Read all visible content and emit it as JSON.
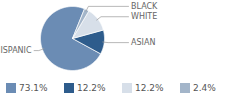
{
  "chart_data": {
    "type": "pie",
    "categories": [
      "HISPANIC",
      "ASIAN",
      "WHITE",
      "BLACK"
    ],
    "values": [
      73.1,
      12.2,
      12.2,
      2.4
    ],
    "value_labels": [
      "73.1%",
      "12.2%",
      "12.2%",
      "2.4%"
    ],
    "colors": [
      "#6b8cb4",
      "#2e5c8c",
      "#d7dfe9",
      "#a3b5c9"
    ],
    "legend": "bottom"
  }
}
